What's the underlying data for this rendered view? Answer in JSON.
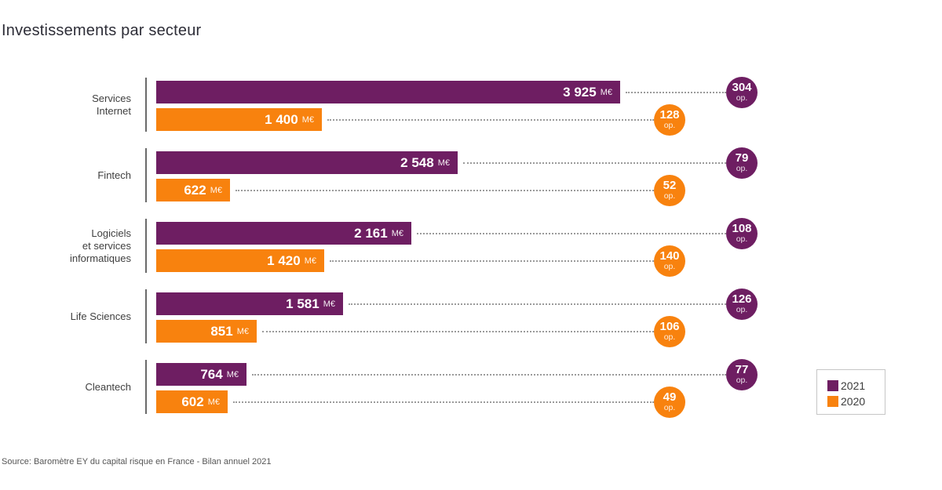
{
  "chart_data": {
    "type": "bar",
    "orientation": "horizontal",
    "title": "Investissements par secteur",
    "unit": "M€",
    "operations_label": "op.",
    "axis": "hidden",
    "xlim": [
      0,
      3925
    ],
    "legend_position": "bottom-right",
    "categories": [
      {
        "lines": [
          "Services",
          "Internet"
        ]
      },
      {
        "lines": [
          "Fintech"
        ]
      },
      {
        "lines": [
          "Logiciels",
          "et services",
          "informatiques"
        ]
      },
      {
        "lines": [
          "Life Sciences"
        ]
      },
      {
        "lines": [
          "Cleantech"
        ]
      }
    ],
    "series": [
      {
        "name": "2021",
        "color": "#6E1E62",
        "values": [
          3925,
          2548,
          2161,
          1581,
          764
        ],
        "value_labels": [
          "3 925",
          "2 548",
          "2 161",
          "1 581",
          "764"
        ],
        "operations": [
          304,
          79,
          108,
          126,
          77
        ]
      },
      {
        "name": "2020",
        "color": "#F8820E",
        "values": [
          1400,
          622,
          1420,
          851,
          602
        ],
        "value_labels": [
          "1 400",
          "622",
          "1 420",
          "851",
          "602"
        ],
        "operations": [
          128,
          52,
          140,
          106,
          49
        ]
      }
    ],
    "legend": [
      {
        "name": "2021",
        "color": "#6E1E62"
      },
      {
        "name": "2020",
        "color": "#F8820E"
      }
    ],
    "source": "Source: Baromètre EY du capital risque en France - Bilan annuel 2021"
  }
}
